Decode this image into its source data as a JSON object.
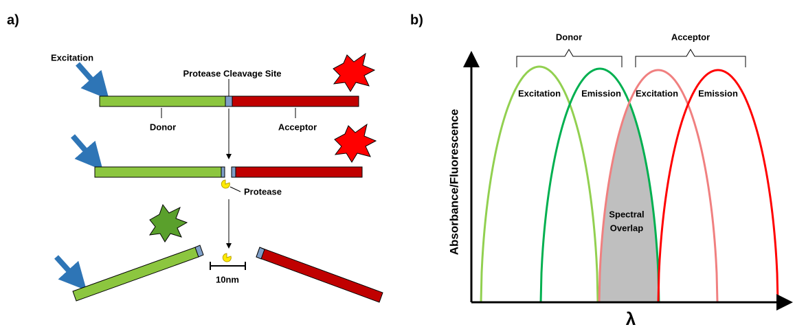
{
  "panel_a": {
    "label": "a)",
    "excitation": "Excitation",
    "cleavage_site": "Protease Cleavage Site",
    "donor": "Donor",
    "acceptor": "Acceptor",
    "protease": "Protease",
    "scale": "10nm"
  },
  "panel_b": {
    "label": "b)",
    "groups": [
      "Donor",
      "Acceptor"
    ],
    "curves": [
      {
        "label": "Excitation"
      },
      {
        "label": "Emission"
      },
      {
        "label": "Excitation"
      },
      {
        "label": "Emission"
      }
    ],
    "y_axis": "Absorbance/Fluorescence",
    "x_axis": "λ",
    "overlap": [
      "Spectral",
      "Overlap"
    ]
  }
}
